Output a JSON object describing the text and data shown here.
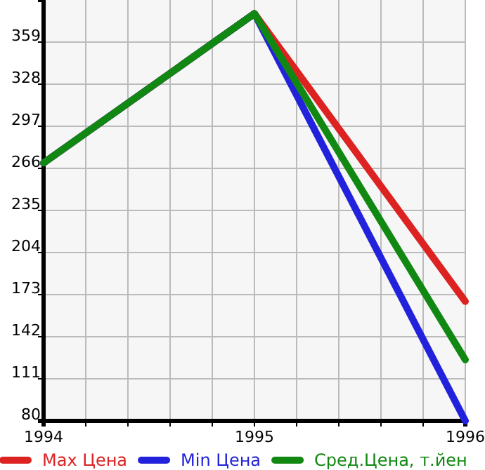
{
  "chart_data": {
    "type": "line",
    "x": [
      1994,
      1995,
      1996
    ],
    "series": [
      {
        "name": "Max Цена",
        "color": "#dd2222",
        "values": [
          270,
          380,
          168
        ]
      },
      {
        "name": "Min Цена",
        "color": "#2222dd",
        "values": [
          270,
          380,
          80
        ]
      },
      {
        "name": "Сред.Цена, т.йен",
        "color": "#118811",
        "values": [
          270,
          380,
          125
        ]
      }
    ],
    "xlim": [
      1994,
      1996
    ],
    "ylim": [
      80,
      390
    ],
    "xticks": [
      1994,
      {
        "value": 1994.2,
        "label": null
      },
      {
        "value": 1994.4,
        "label": null
      },
      {
        "value": 1994.6,
        "label": null
      },
      {
        "value": 1994.8,
        "label": null
      },
      1995,
      {
        "value": 1995.2,
        "label": null
      },
      {
        "value": 1995.4,
        "label": null
      },
      {
        "value": 1995.6,
        "label": null
      },
      {
        "value": 1995.8,
        "label": null
      },
      1996
    ],
    "yticks": [
      80,
      111,
      142,
      173,
      204,
      235,
      266,
      297,
      328,
      359
    ],
    "grid": true,
    "legend": "bottom",
    "marker": "none",
    "line_style": "solid"
  }
}
